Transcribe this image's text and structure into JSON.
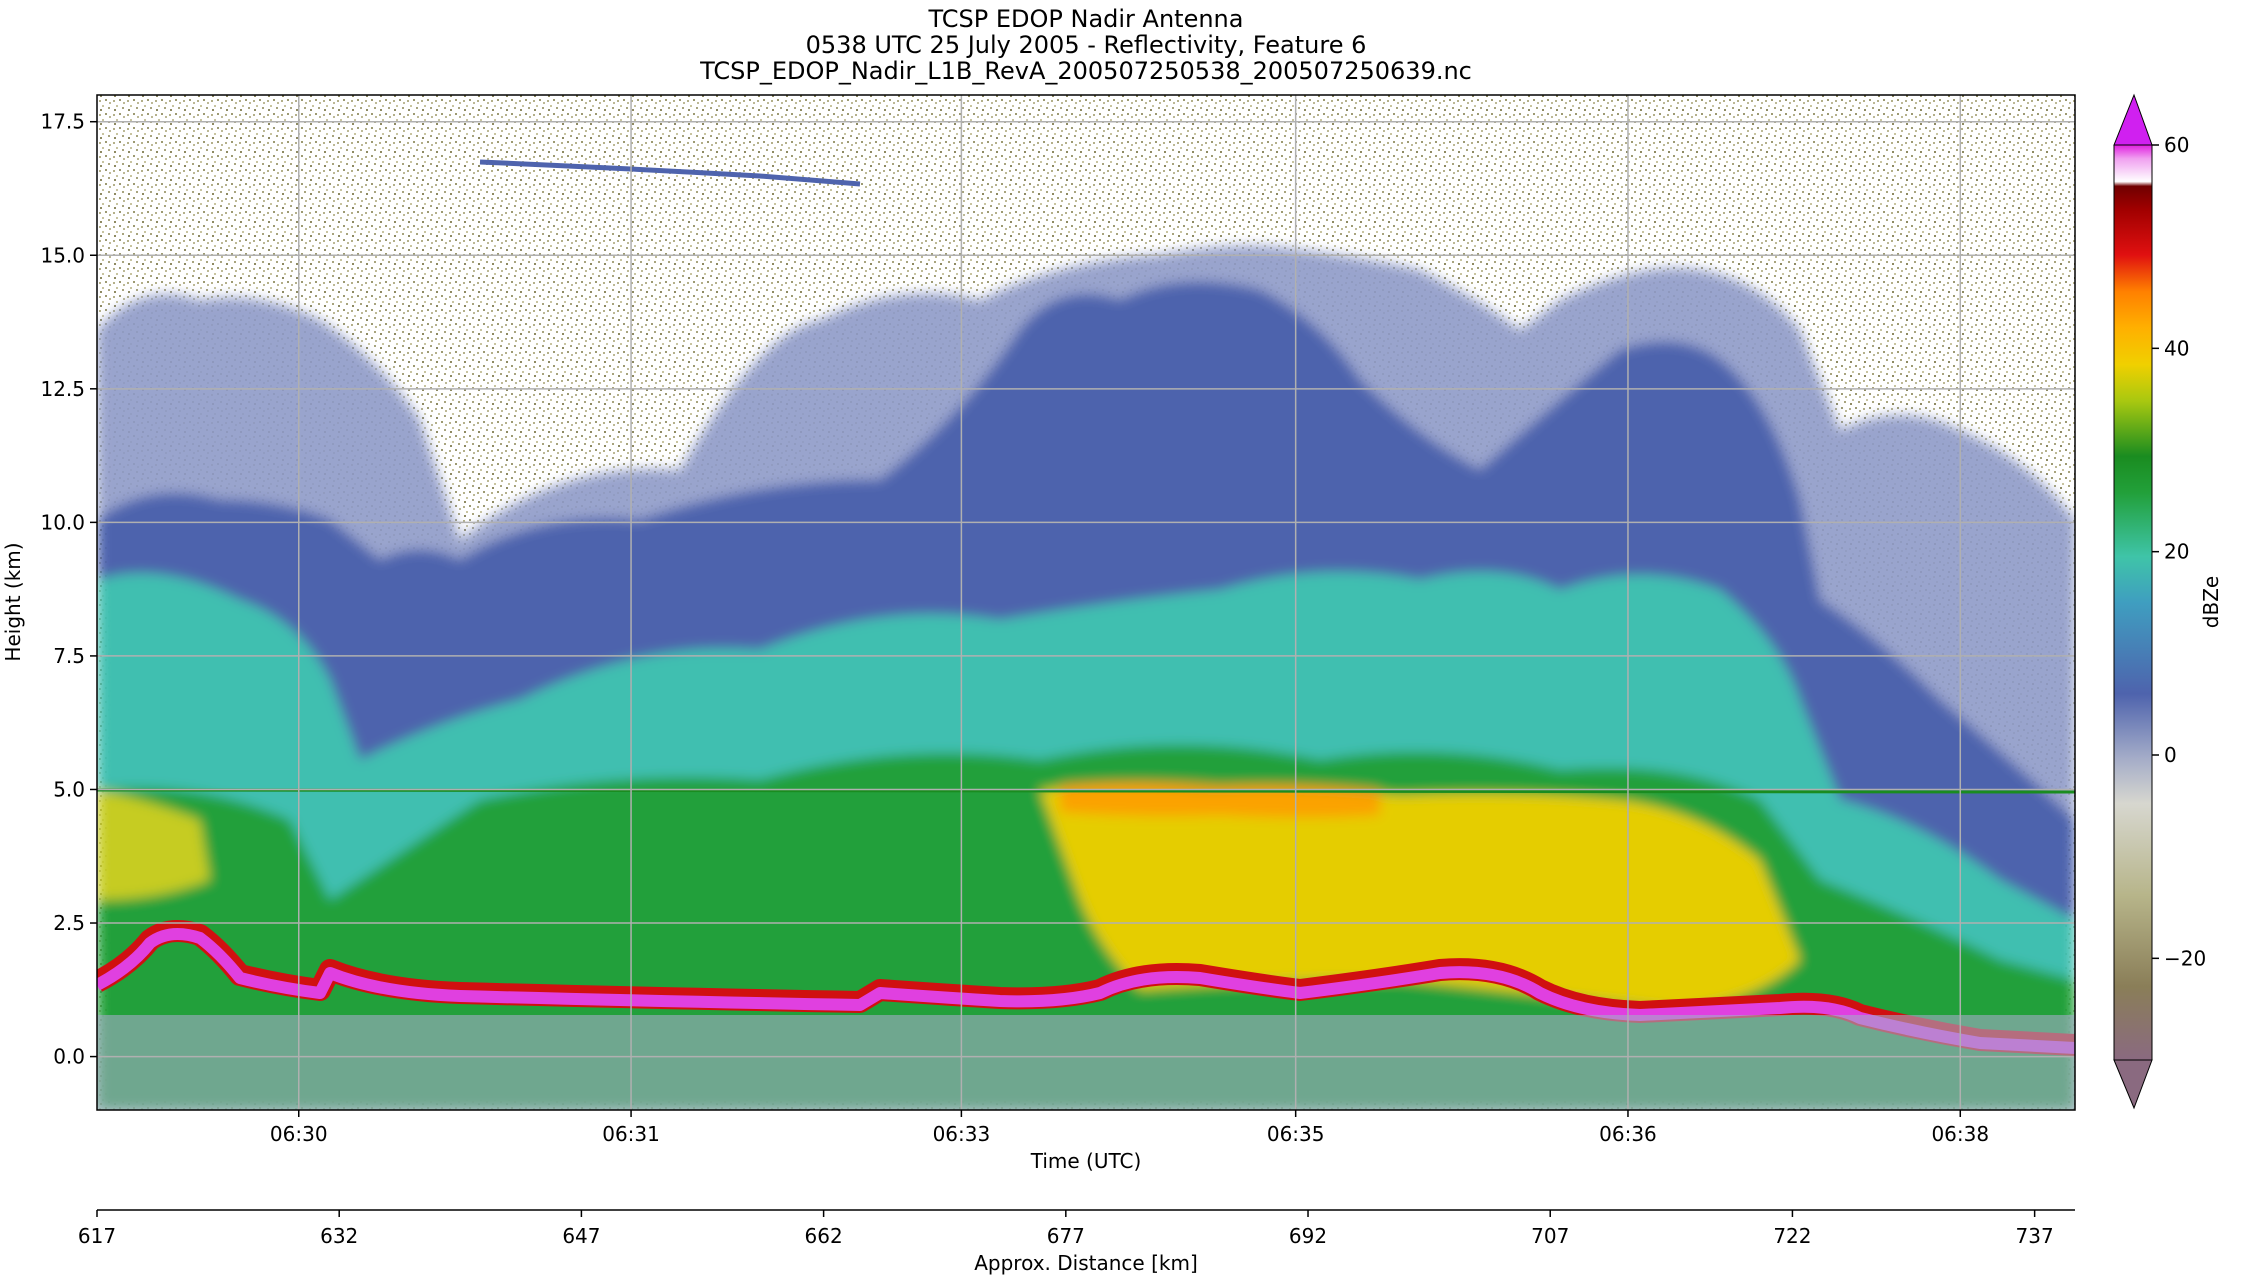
{
  "chart_data": {
    "type": "heatmap",
    "title_lines": [
      "TCSP EDOP Nadir Antenna",
      "0538 UTC 25 July 2005 - Reflectivity, Feature 6",
      "TCSP_EDOP_Nadir_L1B_RevA_200507250538_200507250639.nc"
    ],
    "xlabel": "Time (UTC)",
    "ylabel": "Height (km)",
    "secondary_xlabel": "Approx. Distance [km]",
    "colorbar_label": "dBZe",
    "grid": true,
    "ylim": [
      -1.0,
      18.0
    ],
    "yticks": [
      0.0,
      2.5,
      5.0,
      7.5,
      10.0,
      12.5,
      15.0,
      17.5
    ],
    "ytick_labels": [
      "0.0",
      "2.5",
      "5.0",
      "7.5",
      "10.0",
      "12.5",
      "15.0",
      "17.5"
    ],
    "xtick_labels": [
      "06:30",
      "06:31",
      "06:33",
      "06:35",
      "06:36",
      "06:38"
    ],
    "xtick_fractions": [
      0.102,
      0.27,
      0.437,
      0.606,
      0.774,
      0.942
    ],
    "distance_ticks": [
      "617",
      "632",
      "647",
      "662",
      "677",
      "692",
      "707",
      "722",
      "737"
    ],
    "distance_range": [
      617,
      739.5
    ],
    "colorbar_ticks": [
      "60",
      "40",
      "20",
      "0",
      "−20"
    ],
    "colorbar_tick_values": [
      60,
      40,
      20,
      0,
      -20
    ],
    "colorbar_range": [
      -30,
      60
    ],
    "colorbar_extend": "both",
    "colors": {
      "noise": "#c9c6a2",
      "light_blue": "#8e9ac8",
      "blue": "#4e63ad",
      "cyan": "#3fbfb0",
      "green": "#22a03a",
      "yellow": "#f0d000",
      "orange": "#ff9a00",
      "red": "#d01010",
      "magenta": "#e040e0"
    },
    "features": {
      "cloud_top_km": [
        14.0,
        13.0,
        10.5,
        10.5,
        14.5,
        15.0,
        15.0,
        14.0,
        13.5
      ],
      "melting_layer_km": 5.0,
      "surface_km_profile": [
        1.8,
        2.5,
        1.5,
        1.1,
        1.0,
        1.0,
        1.5,
        1.2,
        1.7,
        1.8,
        1.0,
        1.1,
        0.6
      ]
    }
  }
}
